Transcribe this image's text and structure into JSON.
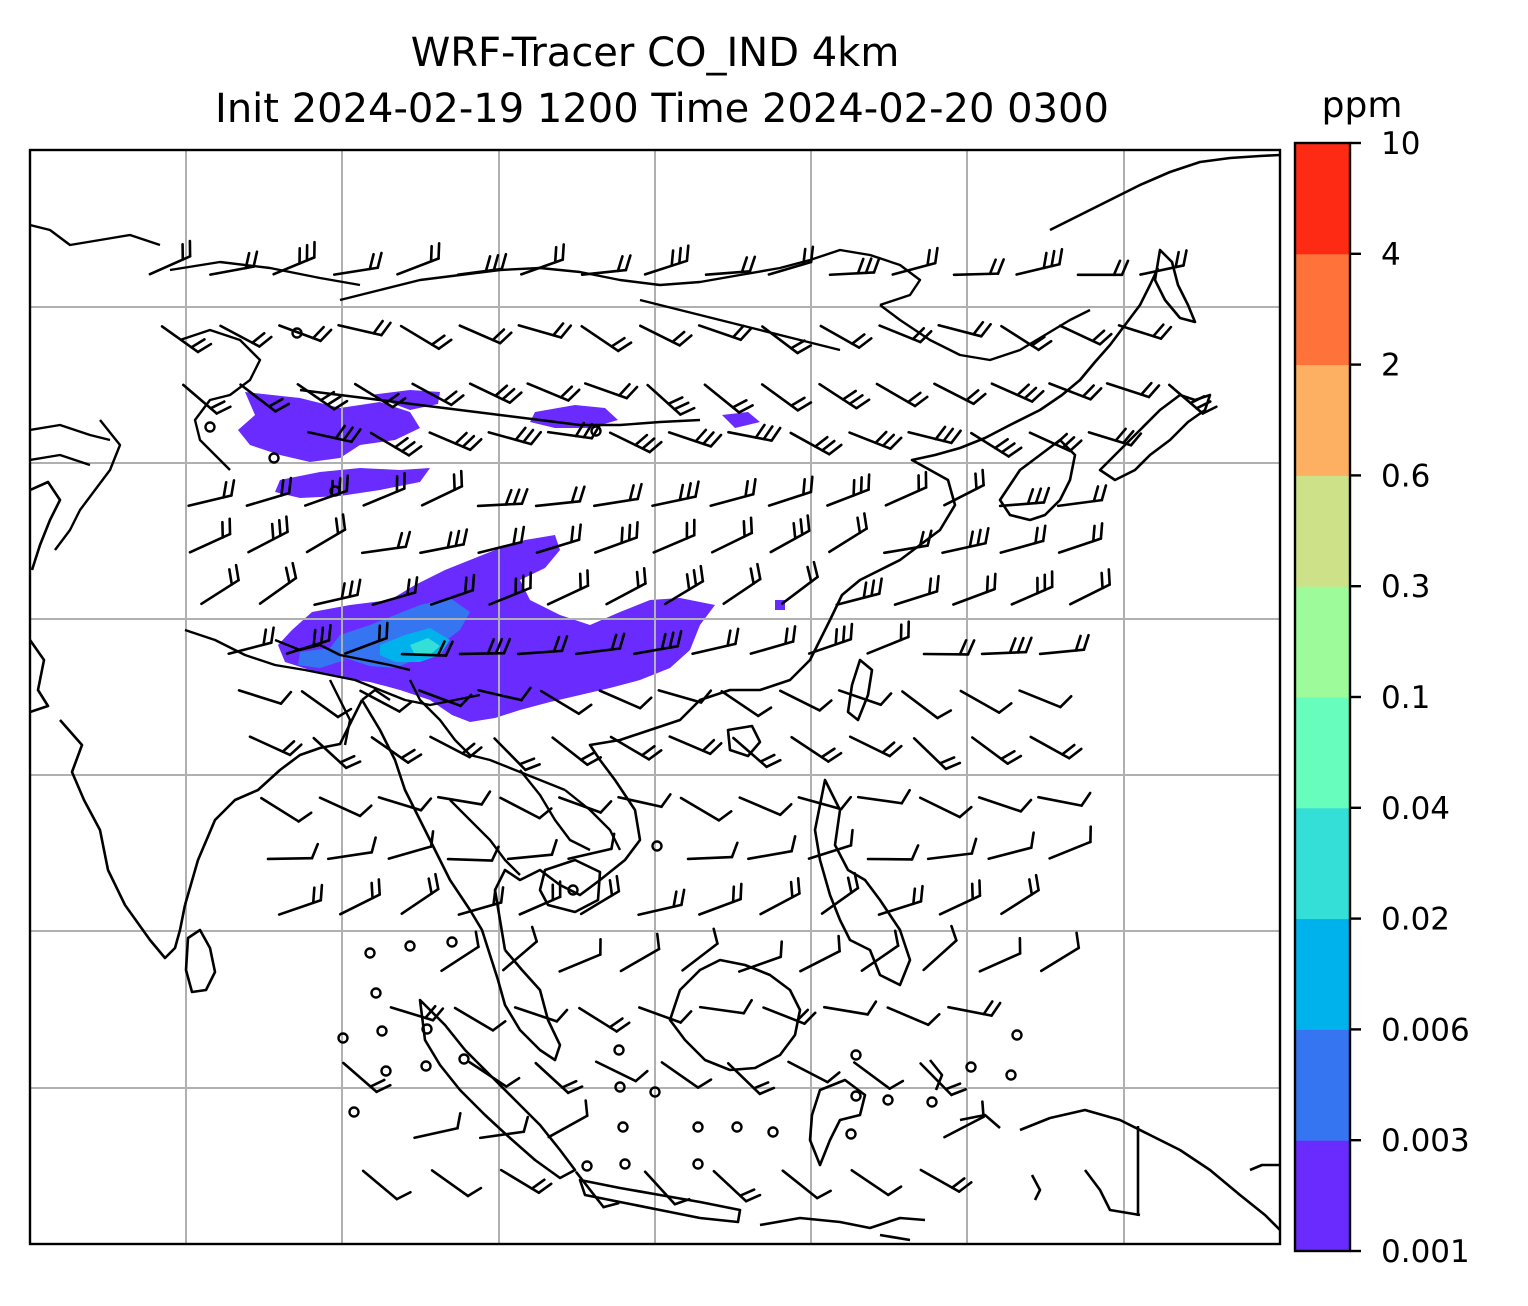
{
  "chart_data": {
    "type": "heatmap",
    "title": "WRF-Tracer CO_IND 4km",
    "subtitle": "Init 2024-02-19 1200 Time 2024-02-20 0300",
    "xlabel": "",
    "ylabel": "",
    "grid": true,
    "colorbar": {
      "label": "ppm",
      "tick_labels": [
        "0.001",
        "0.003",
        "0.006",
        "0.02",
        "0.04",
        "0.1",
        "0.3",
        "0.6",
        "2",
        "4",
        "10"
      ],
      "levels": [
        0.001,
        0.003,
        0.006,
        0.02,
        0.04,
        0.1,
        0.3,
        0.6,
        2,
        4,
        10
      ],
      "colors": [
        "#6a2bff",
        "#3575f2",
        "#00b2eb",
        "#33dfd6",
        "#66fdbd",
        "#9efb9a",
        "#cde288",
        "#fdb062",
        "#ff723a",
        "#ff2a14"
      ]
    },
    "plumes": [
      {
        "region": "northern Himalaya / Tibetan plateau band",
        "max_level": "0.003"
      },
      {
        "region": "Nepal / northeast India to southern China",
        "max_level": "0.04"
      }
    ],
    "overlays": [
      "coastlines",
      "country borders",
      "wind barbs",
      "calm wind circles"
    ]
  },
  "colors": {
    "coastline": "#000000",
    "gridline": "#b0b0b0",
    "barb": "#000000"
  }
}
